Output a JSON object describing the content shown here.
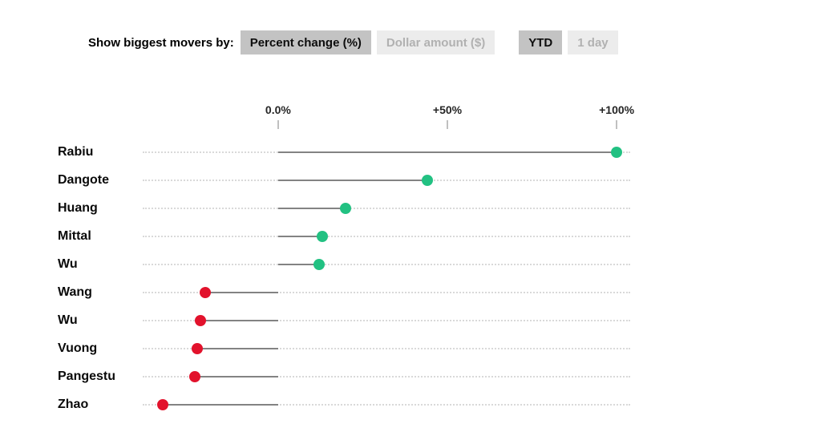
{
  "toolbar": {
    "label": "Show biggest movers by:",
    "metric_options": [
      {
        "label": "Percent change (%)",
        "selected": true
      },
      {
        "label": "Dollar amount ($)",
        "selected": false
      }
    ],
    "period_options": [
      {
        "label": "YTD",
        "selected": true
      },
      {
        "label": "1 day",
        "selected": false
      }
    ]
  },
  "chart_data": {
    "type": "bar",
    "variant": "horizontal-lollipop",
    "categories": [
      "Rabiu",
      "Dangote",
      "Huang",
      "Mittal",
      "Wu",
      "Wang",
      "Wu",
      "Vuong",
      "Pangestu",
      "Zhao"
    ],
    "values": [
      100,
      44,
      20,
      13,
      12,
      -21.5,
      -23,
      -24,
      -24.5,
      -34
    ],
    "unit": "%",
    "xlabel": "",
    "ylabel": "",
    "axis": {
      "ticks": [
        "0.0%",
        "+50%",
        "+100%"
      ],
      "tick_values": [
        0,
        50,
        100
      ],
      "xlim": [
        -40,
        104
      ]
    },
    "legend": "none",
    "grid": false,
    "colors": {
      "positive": "#22c182",
      "negative": "#e2122c",
      "stem": "#838383",
      "track": "#d9d9d9"
    }
  }
}
